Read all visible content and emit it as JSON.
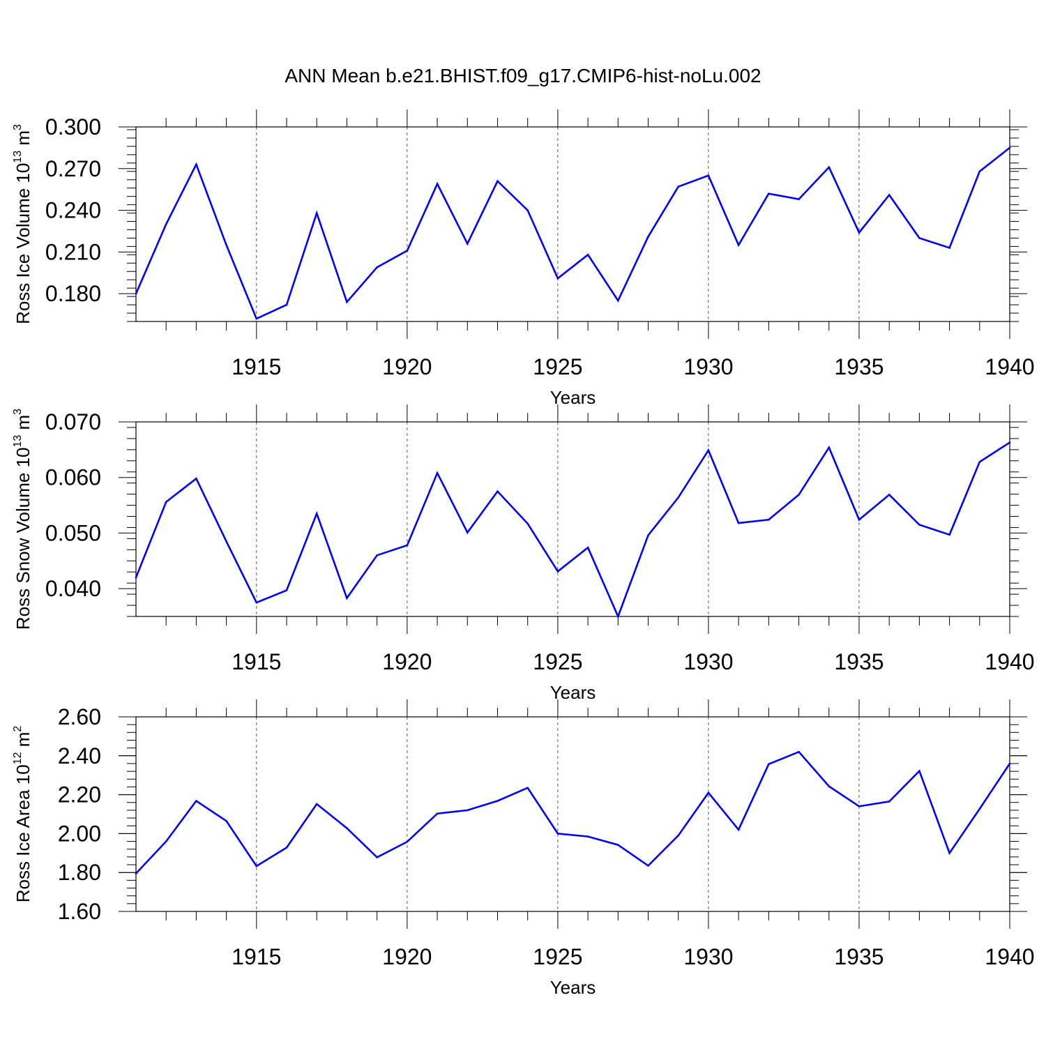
{
  "title": "ANN Mean b.e21.BHIST.f09_g17.CMIP6-hist-noLu.002",
  "colors": {
    "line": "#0000ff",
    "axis": "#000000",
    "grid": "#555555"
  },
  "chart_data": [
    {
      "type": "line",
      "ylabel": {
        "main": "Ross Ice Volume 10",
        "exp": "13",
        "unit": " m",
        "unit_exp": "3"
      },
      "xlabel": "Years",
      "xlim": [
        1911,
        1940
      ],
      "ylim": [
        0.16,
        0.3
      ],
      "x_tick_labels": [
        "1915",
        "1920",
        "1925",
        "1930",
        "1935",
        "1940"
      ],
      "y_tick_labels": [
        "0.180",
        "0.210",
        "0.240",
        "0.270",
        "0.300"
      ],
      "y_major": [
        0.18,
        0.21,
        0.24,
        0.27,
        0.3
      ],
      "y_minor_step": 0.006,
      "series": [
        {
          "name": "Ross Ice Volume",
          "x": [
            1911,
            1912,
            1913,
            1914,
            1915,
            1916,
            1917,
            1918,
            1919,
            1920,
            1921,
            1922,
            1923,
            1924,
            1925,
            1926,
            1927,
            1928,
            1929,
            1930,
            1931,
            1932,
            1933,
            1934,
            1935,
            1936,
            1937,
            1938,
            1939,
            1940
          ],
          "values": [
            0.18,
            0.23,
            0.273,
            0.215,
            0.162,
            0.172,
            0.238,
            0.174,
            0.199,
            0.211,
            0.259,
            0.216,
            0.261,
            0.24,
            0.191,
            0.208,
            0.175,
            0.221,
            0.257,
            0.265,
            0.215,
            0.252,
            0.248,
            0.271,
            0.224,
            0.251,
            0.22,
            0.213,
            0.268,
            0.285
          ]
        }
      ]
    },
    {
      "type": "line",
      "ylabel": {
        "main": "Ross Snow Volume 10",
        "exp": "13",
        "unit": " m",
        "unit_exp": "3"
      },
      "xlabel": "Years",
      "xlim": [
        1911,
        1940
      ],
      "ylim": [
        0.035,
        0.07
      ],
      "x_tick_labels": [
        "1915",
        "1920",
        "1925",
        "1930",
        "1935",
        "1940"
      ],
      "y_tick_labels": [
        "0.040",
        "0.050",
        "0.060",
        "0.070"
      ],
      "y_major": [
        0.04,
        0.05,
        0.06,
        0.07
      ],
      "y_minor_step": 0.002,
      "series": [
        {
          "name": "Ross Snow Volume",
          "x": [
            1911,
            1912,
            1913,
            1914,
            1915,
            1916,
            1917,
            1918,
            1919,
            1920,
            1921,
            1922,
            1923,
            1924,
            1925,
            1926,
            1927,
            1928,
            1929,
            1930,
            1931,
            1932,
            1933,
            1934,
            1935,
            1936,
            1937,
            1938,
            1939,
            1940
          ],
          "values": [
            0.042,
            0.0556,
            0.0598,
            0.0485,
            0.0375,
            0.0397,
            0.0535,
            0.0383,
            0.046,
            0.0478,
            0.0608,
            0.0501,
            0.0575,
            0.0517,
            0.0431,
            0.0474,
            0.035,
            0.0496,
            0.0564,
            0.0649,
            0.0518,
            0.0524,
            0.0569,
            0.0654,
            0.0524,
            0.0569,
            0.0515,
            0.0497,
            0.0628,
            0.0663
          ]
        }
      ]
    },
    {
      "type": "line",
      "ylabel": {
        "main": "Ross Ice Area 10",
        "exp": "12",
        "unit": " m",
        "unit_exp": "2"
      },
      "xlabel": "Years",
      "xlim": [
        1911,
        1940
      ],
      "ylim": [
        1.6,
        2.6
      ],
      "x_tick_labels": [
        "1915",
        "1920",
        "1925",
        "1930",
        "1935",
        "1940"
      ],
      "y_tick_labels": [
        "1.60",
        "1.80",
        "2.00",
        "2.20",
        "2.40",
        "2.60"
      ],
      "y_major": [
        1.6,
        1.8,
        2.0,
        2.2,
        2.4,
        2.6
      ],
      "y_minor_step": 0.04,
      "series": [
        {
          "name": "Ross Ice Area",
          "x": [
            1911,
            1912,
            1913,
            1914,
            1915,
            1916,
            1917,
            1918,
            1919,
            1920,
            1921,
            1922,
            1923,
            1924,
            1925,
            1926,
            1927,
            1928,
            1929,
            1930,
            1931,
            1932,
            1933,
            1934,
            1935,
            1936,
            1937,
            1938,
            1939,
            1940
          ],
          "values": [
            1.795,
            1.96,
            2.168,
            2.065,
            1.833,
            1.928,
            2.152,
            2.028,
            1.878,
            1.958,
            2.103,
            2.12,
            2.168,
            2.235,
            2.0,
            1.985,
            1.942,
            1.835,
            1.99,
            2.21,
            2.02,
            2.357,
            2.42,
            2.243,
            2.14,
            2.165,
            2.322,
            1.9,
            2.127,
            2.36
          ]
        }
      ]
    }
  ]
}
